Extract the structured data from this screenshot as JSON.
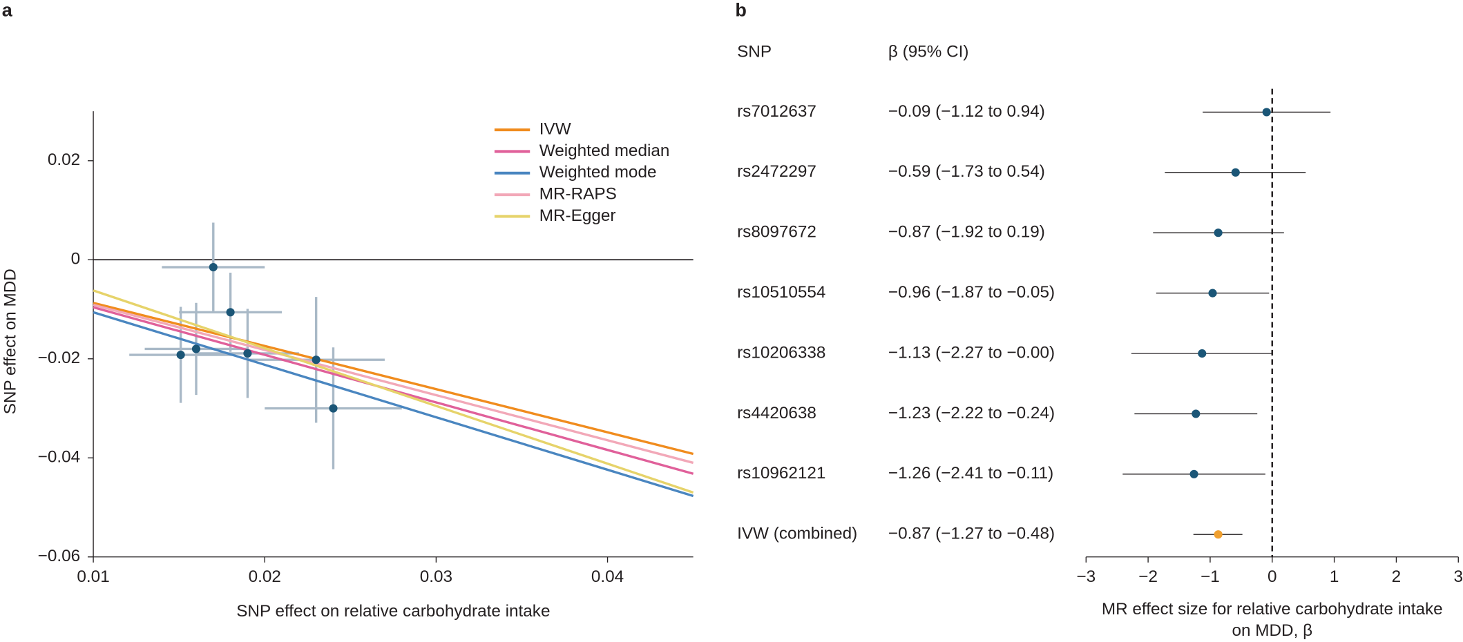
{
  "chart_data": [
    {
      "type": "scatter",
      "panel": "a",
      "xlabel": "SNP effect on relative carbohydrate intake",
      "ylabel": "SNP effect on MDD",
      "x": [
        0.017,
        0.018,
        0.0151,
        0.016,
        0.019,
        0.023,
        0.024
      ],
      "values": [
        -0.0015,
        -0.0106,
        -0.0192,
        -0.018,
        -0.0189,
        -0.0202,
        -0.03
      ],
      "xerr": [
        0.003,
        0.003,
        0.003,
        0.003,
        0.003,
        0.004,
        0.004
      ],
      "yerr": [
        0.009,
        0.008,
        0.0097,
        0.0093,
        0.009,
        0.0127,
        0.0123
      ],
      "color": "#1b5677",
      "errorbar_color": "#a9b9c7",
      "hline": 0,
      "series": [
        {
          "name": "IVW",
          "color": "#f08c1e",
          "x": [
            0.01,
            0.045
          ],
          "values": [
            -0.0087,
            -0.0392
          ]
        },
        {
          "name": "Weighted median",
          "color": "#e0609a",
          "x": [
            0.01,
            0.045
          ],
          "values": [
            -0.0096,
            -0.0432
          ]
        },
        {
          "name": "Weighted mode",
          "color": "#4a86c0",
          "x": [
            0.01,
            0.045
          ],
          "values": [
            -0.0106,
            -0.0477
          ]
        },
        {
          "name": "MR-RAPS",
          "color": "#f2a8b8",
          "x": [
            0.01,
            0.045
          ],
          "values": [
            -0.0091,
            -0.041
          ]
        },
        {
          "name": "MR-Egger",
          "color": "#e6d36a",
          "x": [
            0.01,
            0.045
          ],
          "values": [
            -0.0062,
            -0.047
          ]
        }
      ],
      "xlim": [
        0.01,
        0.045
      ],
      "ylim": [
        -0.06,
        0.03
      ],
      "xticks": [
        0.01,
        0.02,
        0.03,
        0.04
      ],
      "yticks": [
        {
          "value": -0.06,
          "label": "−0.06"
        },
        {
          "value": -0.04,
          "label": "−0.04"
        },
        {
          "value": -0.02,
          "label": "−0.02"
        },
        0,
        0.02
      ]
    },
    {
      "type": "forest",
      "panel": "b",
      "column_headers": [
        "SNP",
        "β (95% CI)"
      ],
      "categories": [
        "rs7012637",
        "rs2472297",
        "rs8097672",
        "rs10510554",
        "rs10206338",
        "rs4420638",
        "rs10962121",
        "IVW (combined)"
      ],
      "values": [
        -0.09,
        -0.59,
        -0.87,
        -0.96,
        -1.13,
        -1.23,
        -1.26,
        -0.87
      ],
      "lower": [
        -1.12,
        -1.73,
        -1.92,
        -1.87,
        -2.27,
        -2.22,
        -2.41,
        -1.27
      ],
      "upper": [
        0.94,
        0.54,
        0.19,
        -0.05,
        -0.0,
        -0.24,
        -0.11,
        -0.48
      ],
      "value_labels": [
        "−0.09 (−1.12 to 0.94)",
        "−0.59 (−1.73 to 0.54)",
        "−0.87 (−1.92 to 0.19)",
        "−0.96 (−1.87 to −0.05)",
        "−1.13 (−2.27 to −0.00)",
        "−1.23 (−2.22 to −0.24)",
        "−1.26 (−2.41 to −0.11)",
        "−0.87 (−1.27 to −0.48)"
      ],
      "colors": [
        "#1b5677",
        "#1b5677",
        "#1b5677",
        "#1b5677",
        "#1b5677",
        "#1b5677",
        "#1b5677",
        "#f0a030"
      ],
      "refline": 0,
      "xlim": [
        -3,
        3
      ],
      "xticks": [
        {
          "value": -3,
          "label": "−3"
        },
        {
          "value": -2,
          "label": "−2"
        },
        {
          "value": -1,
          "label": "−1"
        },
        0,
        1,
        2,
        3
      ],
      "xlabel": [
        "MR effect size for relative carbohydrate intake",
        "on MDD, β"
      ]
    }
  ]
}
